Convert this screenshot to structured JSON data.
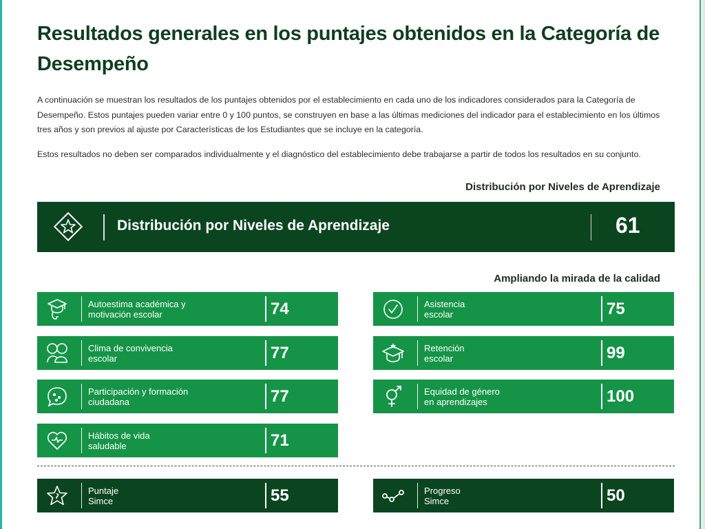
{
  "page": {
    "title": "Resultados generales en los puntajes obtenidos en la Categoría de Desempeño",
    "paragraph1": "A continuación se muestran los resultados de los puntajes obtenidos por el establecimiento en cada uno de los indicadores considerados para la Categoría de Desempeño. Estos puntajes pueden variar entre 0 y 100 puntos, se construyen en base a las últimas mediciones del indicador para el establecimiento en los últimos tres años y son previos al ajuste por Características de los Estudiantes que se incluye en la categoría.",
    "paragraph2": "Estos resultados no deben ser comparados individualmente y el diagnóstico del establecimiento debe trabajarse a partir de todos los resultados en su conjunto."
  },
  "section1": {
    "label": "Distribución por Niveles de Aprendizaje",
    "bar": {
      "title": "Distribución por Niveles de Aprendizaje",
      "score": "61",
      "icon": "diamond-star-icon"
    }
  },
  "section2": {
    "label": "Ampliando la mirada de la calidad",
    "left": [
      {
        "line1": "Autoestima académica y",
        "line2": "motivación escolar",
        "score": "74",
        "icon": "graduation-head-icon"
      },
      {
        "line1": "Clima de convivencia",
        "line2": "escolar",
        "score": "77",
        "icon": "people-icon"
      },
      {
        "line1": "Participación y formación",
        "line2": "ciudadana",
        "score": "77",
        "icon": "speech-bubble-icon"
      },
      {
        "line1": "Hábitos de vida",
        "line2": "saludable",
        "score": "71",
        "icon": "heart-icon"
      }
    ],
    "right": [
      {
        "line1": "Asistencia",
        "line2": "escolar",
        "score": "75",
        "icon": "check-circle-icon"
      },
      {
        "line1": "Retención",
        "line2": "escolar",
        "score": "99",
        "icon": "graduation-cap-star-icon"
      },
      {
        "line1": "Equidad de género",
        "line2": "en aprendizajes",
        "score": "100",
        "icon": "gender-icon"
      }
    ]
  },
  "bottom": {
    "left": {
      "line1": "Puntaje",
      "line2": "Simce",
      "score": "55",
      "icon": "star-icon"
    },
    "right": {
      "line1": "Progreso",
      "line2": "Simce",
      "score": "50",
      "icon": "progress-nodes-icon"
    }
  },
  "colors": {
    "dark_green": "#0b4520",
    "green": "#159447",
    "title": "#0f3d1f",
    "accent_edge": "#26b3a7"
  }
}
